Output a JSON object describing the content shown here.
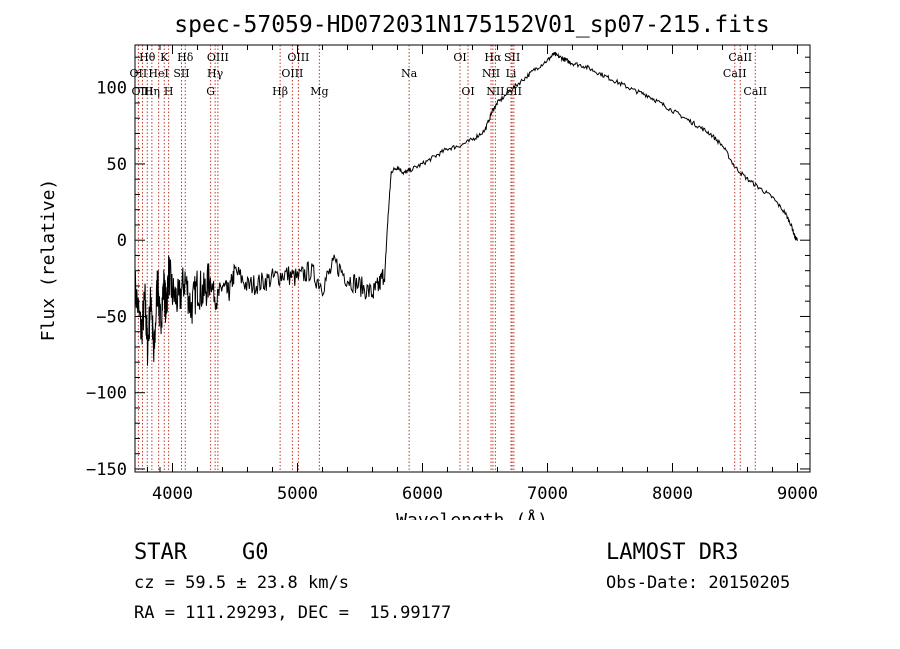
{
  "chart_data": {
    "type": "line",
    "title": "spec-57059-HD072031N175152V01_sp07-215.fits",
    "xlabel": "Wavelength (Å)",
    "ylabel": "Flux (relative)",
    "xlim": [
      3700,
      9100
    ],
    "ylim": [
      -152,
      128
    ],
    "x_ticks": [
      4000,
      5000,
      6000,
      7000,
      8000,
      9000
    ],
    "x_tick_labels": [
      "4000",
      "5000",
      "6000",
      "7000",
      "8000",
      "9000"
    ],
    "y_ticks": [
      -150,
      -100,
      -50,
      0,
      50,
      100
    ],
    "y_tick_labels": [
      "−150",
      "−100",
      "−50",
      "0",
      "50",
      "100"
    ],
    "spectrum": {
      "name": "flux",
      "x": [
        3700,
        3750,
        3780,
        3800,
        3830,
        3850,
        3880,
        3900,
        3930,
        3950,
        3970,
        4000,
        4050,
        4100,
        4150,
        4200,
        4250,
        4300,
        4350,
        4400,
        4450,
        4500,
        4600,
        4700,
        4800,
        4900,
        5000,
        5100,
        5200,
        5300,
        5400,
        5500,
        5600,
        5650,
        5700,
        5720,
        5750,
        5800,
        5850,
        5900,
        6000,
        6100,
        6200,
        6300,
        6400,
        6500,
        6560,
        6600,
        6700,
        6800,
        6900,
        7000,
        7050,
        7100,
        7150,
        7200,
        7300,
        7400,
        7500,
        7600,
        7700,
        7800,
        7900,
        8000,
        8100,
        8200,
        8300,
        8400,
        8500,
        8600,
        8700,
        8800,
        8900,
        8950,
        8980,
        9000
      ],
      "y": [
        -30,
        -60,
        -40,
        -70,
        -35,
        -80,
        -25,
        -55,
        -30,
        -45,
        -20,
        -35,
        -40,
        -25,
        -45,
        -30,
        -35,
        -25,
        -40,
        -30,
        -35,
        -20,
        -30,
        -28,
        -25,
        -22,
        -25,
        -20,
        -30,
        -15,
        -25,
        -30,
        -35,
        -30,
        -20,
        10,
        45,
        48,
        44,
        46,
        50,
        55,
        60,
        62,
        66,
        72,
        85,
        90,
        98,
        105,
        112,
        118,
        122,
        120,
        118,
        116,
        114,
        110,
        106,
        102,
        98,
        95,
        90,
        85,
        80,
        75,
        70,
        62,
        48,
        40,
        34,
        28,
        18,
        10,
        2,
        0
      ]
    },
    "lines": [
      {
        "label": "Hθ",
        "x": 3798,
        "row": 1
      },
      {
        "label": "OII",
        "x": 3727,
        "row": 2
      },
      {
        "label": "OIII",
        "x": 3760,
        "row": 3
      },
      {
        "label": "K",
        "x": 3934,
        "row": 1
      },
      {
        "label": "HeI",
        "x": 3889,
        "row": 2
      },
      {
        "label": "Hη",
        "x": 3835,
        "row": 3
      },
      {
        "label": "Hδ",
        "x": 4102,
        "row": 1
      },
      {
        "label": "SII",
        "x": 4072,
        "row": 2
      },
      {
        "label": "H",
        "x": 3969,
        "row": 3
      },
      {
        "label": "OIII",
        "x": 4363,
        "row": 1
      },
      {
        "label": "Hγ",
        "x": 4341,
        "row": 2
      },
      {
        "label": "G",
        "x": 4305,
        "row": 3
      },
      {
        "label": "OIII",
        "x": 5007,
        "row": 1
      },
      {
        "label": "OIII",
        "x": 4959,
        "row": 2
      },
      {
        "label": "Hβ",
        "x": 4861,
        "row": 3
      },
      {
        "label": "Mg",
        "x": 5175,
        "row": 3
      },
      {
        "label": "Na",
        "x": 5893,
        "row": 2
      },
      {
        "label": "OI",
        "x": 6300,
        "row": 1
      },
      {
        "label": "OI",
        "x": 6364,
        "row": 3
      },
      {
        "label": "Hα",
        "x": 6563,
        "row": 1
      },
      {
        "label": "NII",
        "x": 6548,
        "row": 2
      },
      {
        "label": "NII",
        "x": 6583,
        "row": 3
      },
      {
        "label": "SII",
        "x": 6717,
        "row": 1
      },
      {
        "label": "Li",
        "x": 6708,
        "row": 2
      },
      {
        "label": "SII",
        "x": 6731,
        "row": 3
      },
      {
        "label": "CaII",
        "x": 8542,
        "row": 1
      },
      {
        "label": "CaII",
        "x": 8498,
        "row": 2
      },
      {
        "label": "CaII",
        "x": 8662,
        "row": 3
      }
    ]
  },
  "info": {
    "object_class": "STAR",
    "subclass": "G0",
    "survey": "LAMOST DR3",
    "redshift_text": "cz = 59.5 ± 23.8 km/s",
    "obs_date": "Obs-Date: 20150205",
    "coords": "RA = 111.29293, DEC =  15.99177"
  },
  "colors": {
    "line_marker": "#c0392b",
    "axis": "#000000",
    "spectrum": "#000000"
  }
}
